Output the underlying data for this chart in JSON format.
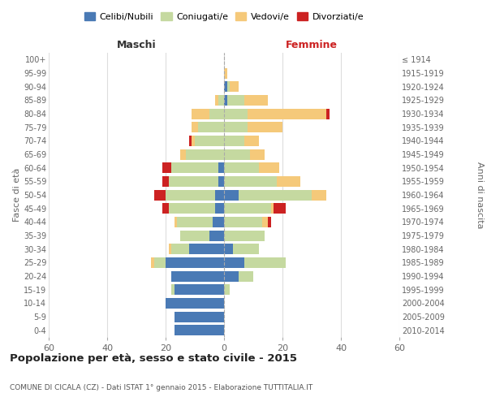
{
  "age_groups": [
    "0-4",
    "5-9",
    "10-14",
    "15-19",
    "20-24",
    "25-29",
    "30-34",
    "35-39",
    "40-44",
    "45-49",
    "50-54",
    "55-59",
    "60-64",
    "65-69",
    "70-74",
    "75-79",
    "80-84",
    "85-89",
    "90-94",
    "95-99",
    "100+"
  ],
  "birth_years": [
    "2010-2014",
    "2005-2009",
    "2000-2004",
    "1995-1999",
    "1990-1994",
    "1985-1989",
    "1980-1984",
    "1975-1979",
    "1970-1974",
    "1965-1969",
    "1960-1964",
    "1955-1959",
    "1950-1954",
    "1945-1949",
    "1940-1944",
    "1935-1939",
    "1930-1934",
    "1925-1929",
    "1920-1924",
    "1915-1919",
    "≤ 1914"
  ],
  "male_celibi": [
    17,
    17,
    20,
    17,
    18,
    20,
    12,
    5,
    4,
    3,
    3,
    2,
    2,
    0,
    0,
    0,
    0,
    0,
    0,
    0,
    0
  ],
  "male_coniugati": [
    0,
    0,
    0,
    1,
    0,
    4,
    6,
    10,
    12,
    16,
    17,
    17,
    16,
    13,
    10,
    9,
    5,
    2,
    0,
    0,
    0
  ],
  "male_vedovi": [
    0,
    0,
    0,
    0,
    0,
    1,
    1,
    0,
    1,
    0,
    0,
    0,
    0,
    2,
    1,
    2,
    6,
    1,
    0,
    0,
    0
  ],
  "male_divorziati": [
    0,
    0,
    0,
    0,
    0,
    0,
    0,
    0,
    0,
    2,
    4,
    2,
    3,
    0,
    1,
    0,
    0,
    0,
    0,
    0,
    0
  ],
  "female_celibi": [
    0,
    0,
    0,
    0,
    5,
    7,
    3,
    0,
    0,
    0,
    5,
    0,
    0,
    0,
    0,
    0,
    0,
    1,
    1,
    0,
    0
  ],
  "female_coniugati": [
    0,
    0,
    0,
    2,
    5,
    14,
    9,
    14,
    13,
    16,
    25,
    18,
    12,
    9,
    7,
    8,
    8,
    6,
    1,
    0,
    0
  ],
  "female_vedovi": [
    0,
    0,
    0,
    0,
    0,
    0,
    0,
    0,
    2,
    1,
    5,
    8,
    7,
    5,
    5,
    12,
    27,
    8,
    3,
    1,
    0
  ],
  "female_divorziati": [
    0,
    0,
    0,
    0,
    0,
    0,
    0,
    0,
    1,
    4,
    0,
    0,
    0,
    0,
    0,
    0,
    1,
    0,
    0,
    0,
    0
  ],
  "color_celibi": "#4a7ab5",
  "color_coniugati": "#c5d9a0",
  "color_vedovi": "#f5c97a",
  "color_divorziati": "#cc2222",
  "title": "Popolazione per età, sesso e stato civile - 2015",
  "subtitle": "COMUNE DI CICALA (CZ) - Dati ISTAT 1° gennaio 2015 - Elaborazione TUTTITALIA.IT",
  "xlabel_left": "Maschi",
  "xlabel_right": "Femmine",
  "ylabel_left": "Fasce di età",
  "ylabel_right": "Anni di nascita",
  "xlim": 60,
  "bg_color": "#ffffff",
  "grid_color": "#dddddd"
}
